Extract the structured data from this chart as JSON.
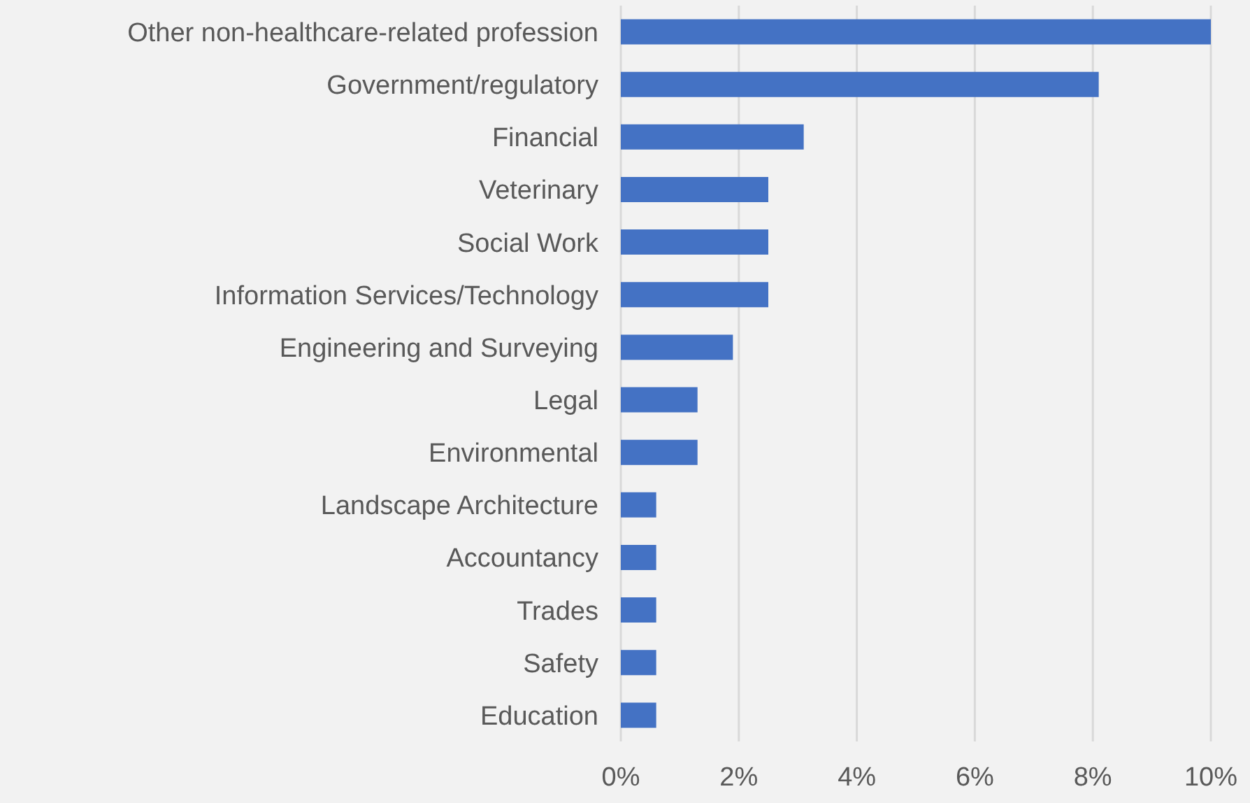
{
  "chart_data": {
    "type": "bar",
    "orientation": "horizontal",
    "categories": [
      "Other non-healthcare-related profession",
      "Government/regulatory",
      "Financial",
      "Veterinary",
      "Social Work",
      "Information Services/Technology",
      "Engineering and Surveying",
      "Legal",
      "Environmental",
      "Landscape Architecture",
      "Accountancy",
      "Trades",
      "Safety",
      "Education"
    ],
    "values": [
      10,
      8.1,
      3.1,
      2.5,
      2.5,
      2.5,
      1.9,
      1.3,
      1.3,
      0.6,
      0.6,
      0.6,
      0.6,
      0.6
    ],
    "color": "#4472c4",
    "xlim": [
      0,
      10
    ],
    "xticks": [
      {
        "value": 0,
        "label": "0%"
      },
      {
        "value": 2,
        "label": "2%"
      },
      {
        "value": 4,
        "label": "4%"
      },
      {
        "value": 6,
        "label": "6%"
      },
      {
        "value": 8,
        "label": "8%"
      },
      {
        "value": 10,
        "label": "10%"
      }
    ],
    "grid": "x"
  }
}
